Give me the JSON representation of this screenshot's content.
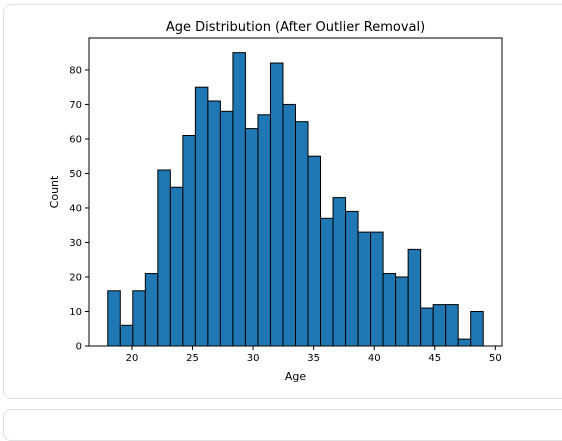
{
  "cell": {
    "output_icon": "output-toggle-icon",
    "output_glyph": "[↩]"
  },
  "chart_data": {
    "type": "bar",
    "title": "Age Distribution (After Outlier Removal)",
    "xlabel": "Age",
    "ylabel": "Count",
    "xlim": [
      16.45,
      50.55
    ],
    "ylim": [
      0,
      89.25
    ],
    "xticks": [
      20,
      25,
      30,
      35,
      40,
      45,
      50
    ],
    "yticks": [
      0,
      10,
      20,
      30,
      40,
      50,
      60,
      70,
      80
    ],
    "bin_start": 18,
    "bin_width": 1.0333,
    "values": [
      16,
      6,
      16,
      21,
      51,
      46,
      61,
      75,
      71,
      68,
      85,
      63,
      67,
      82,
      70,
      65,
      55,
      37,
      43,
      39,
      33,
      33,
      21,
      20,
      28,
      11,
      12,
      12,
      2,
      10
    ],
    "bar_color": "#1f77b4",
    "edge_color": "#000000",
    "grid": false
  }
}
